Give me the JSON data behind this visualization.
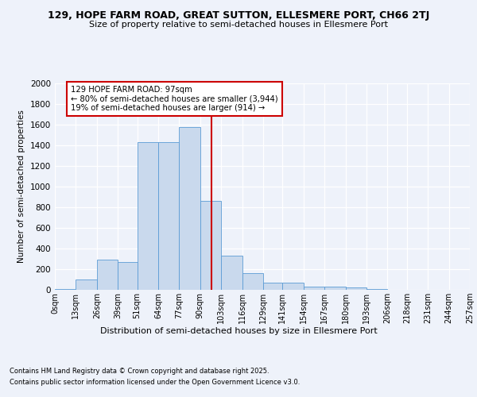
{
  "title1": "129, HOPE FARM ROAD, GREAT SUTTON, ELLESMERE PORT, CH66 2TJ",
  "title2": "Size of property relative to semi-detached houses in Ellesmere Port",
  "xlabel": "Distribution of semi-detached houses by size in Ellesmere Port",
  "ylabel": "Number of semi-detached properties",
  "footnote1": "Contains HM Land Registry data © Crown copyright and database right 2025.",
  "footnote2": "Contains public sector information licensed under the Open Government Licence v3.0.",
  "annotation_line1": "129 HOPE FARM ROAD: 97sqm",
  "annotation_line2": "← 80% of semi-detached houses are smaller (3,944)",
  "annotation_line3": "19% of semi-detached houses are larger (914) →",
  "property_size": 97,
  "bin_edges": [
    0,
    13,
    26,
    39,
    51,
    64,
    77,
    90,
    103,
    116,
    129,
    141,
    154,
    167,
    180,
    193,
    206,
    218,
    231,
    244,
    257
  ],
  "bin_labels": [
    "0sqm",
    "13sqm",
    "26sqm",
    "39sqm",
    "51sqm",
    "64sqm",
    "77sqm",
    "90sqm",
    "103sqm",
    "116sqm",
    "129sqm",
    "141sqm",
    "154sqm",
    "167sqm",
    "180sqm",
    "193sqm",
    "206sqm",
    "218sqm",
    "231sqm",
    "244sqm",
    "257sqm"
  ],
  "bar_values": [
    5,
    100,
    290,
    270,
    1430,
    1430,
    1580,
    860,
    330,
    160,
    70,
    70,
    30,
    30,
    20,
    10,
    2,
    2,
    2,
    2
  ],
  "bar_color": "#c9d9ed",
  "bar_edge_color": "#5b9bd5",
  "vline_color": "#cc0000",
  "annotation_box_edge": "#cc0000",
  "annotation_box_face": "#ffffff",
  "background_color": "#eef2fa",
  "ylim": [
    0,
    2000
  ],
  "yticks": [
    0,
    200,
    400,
    600,
    800,
    1000,
    1200,
    1400,
    1600,
    1800,
    2000
  ]
}
